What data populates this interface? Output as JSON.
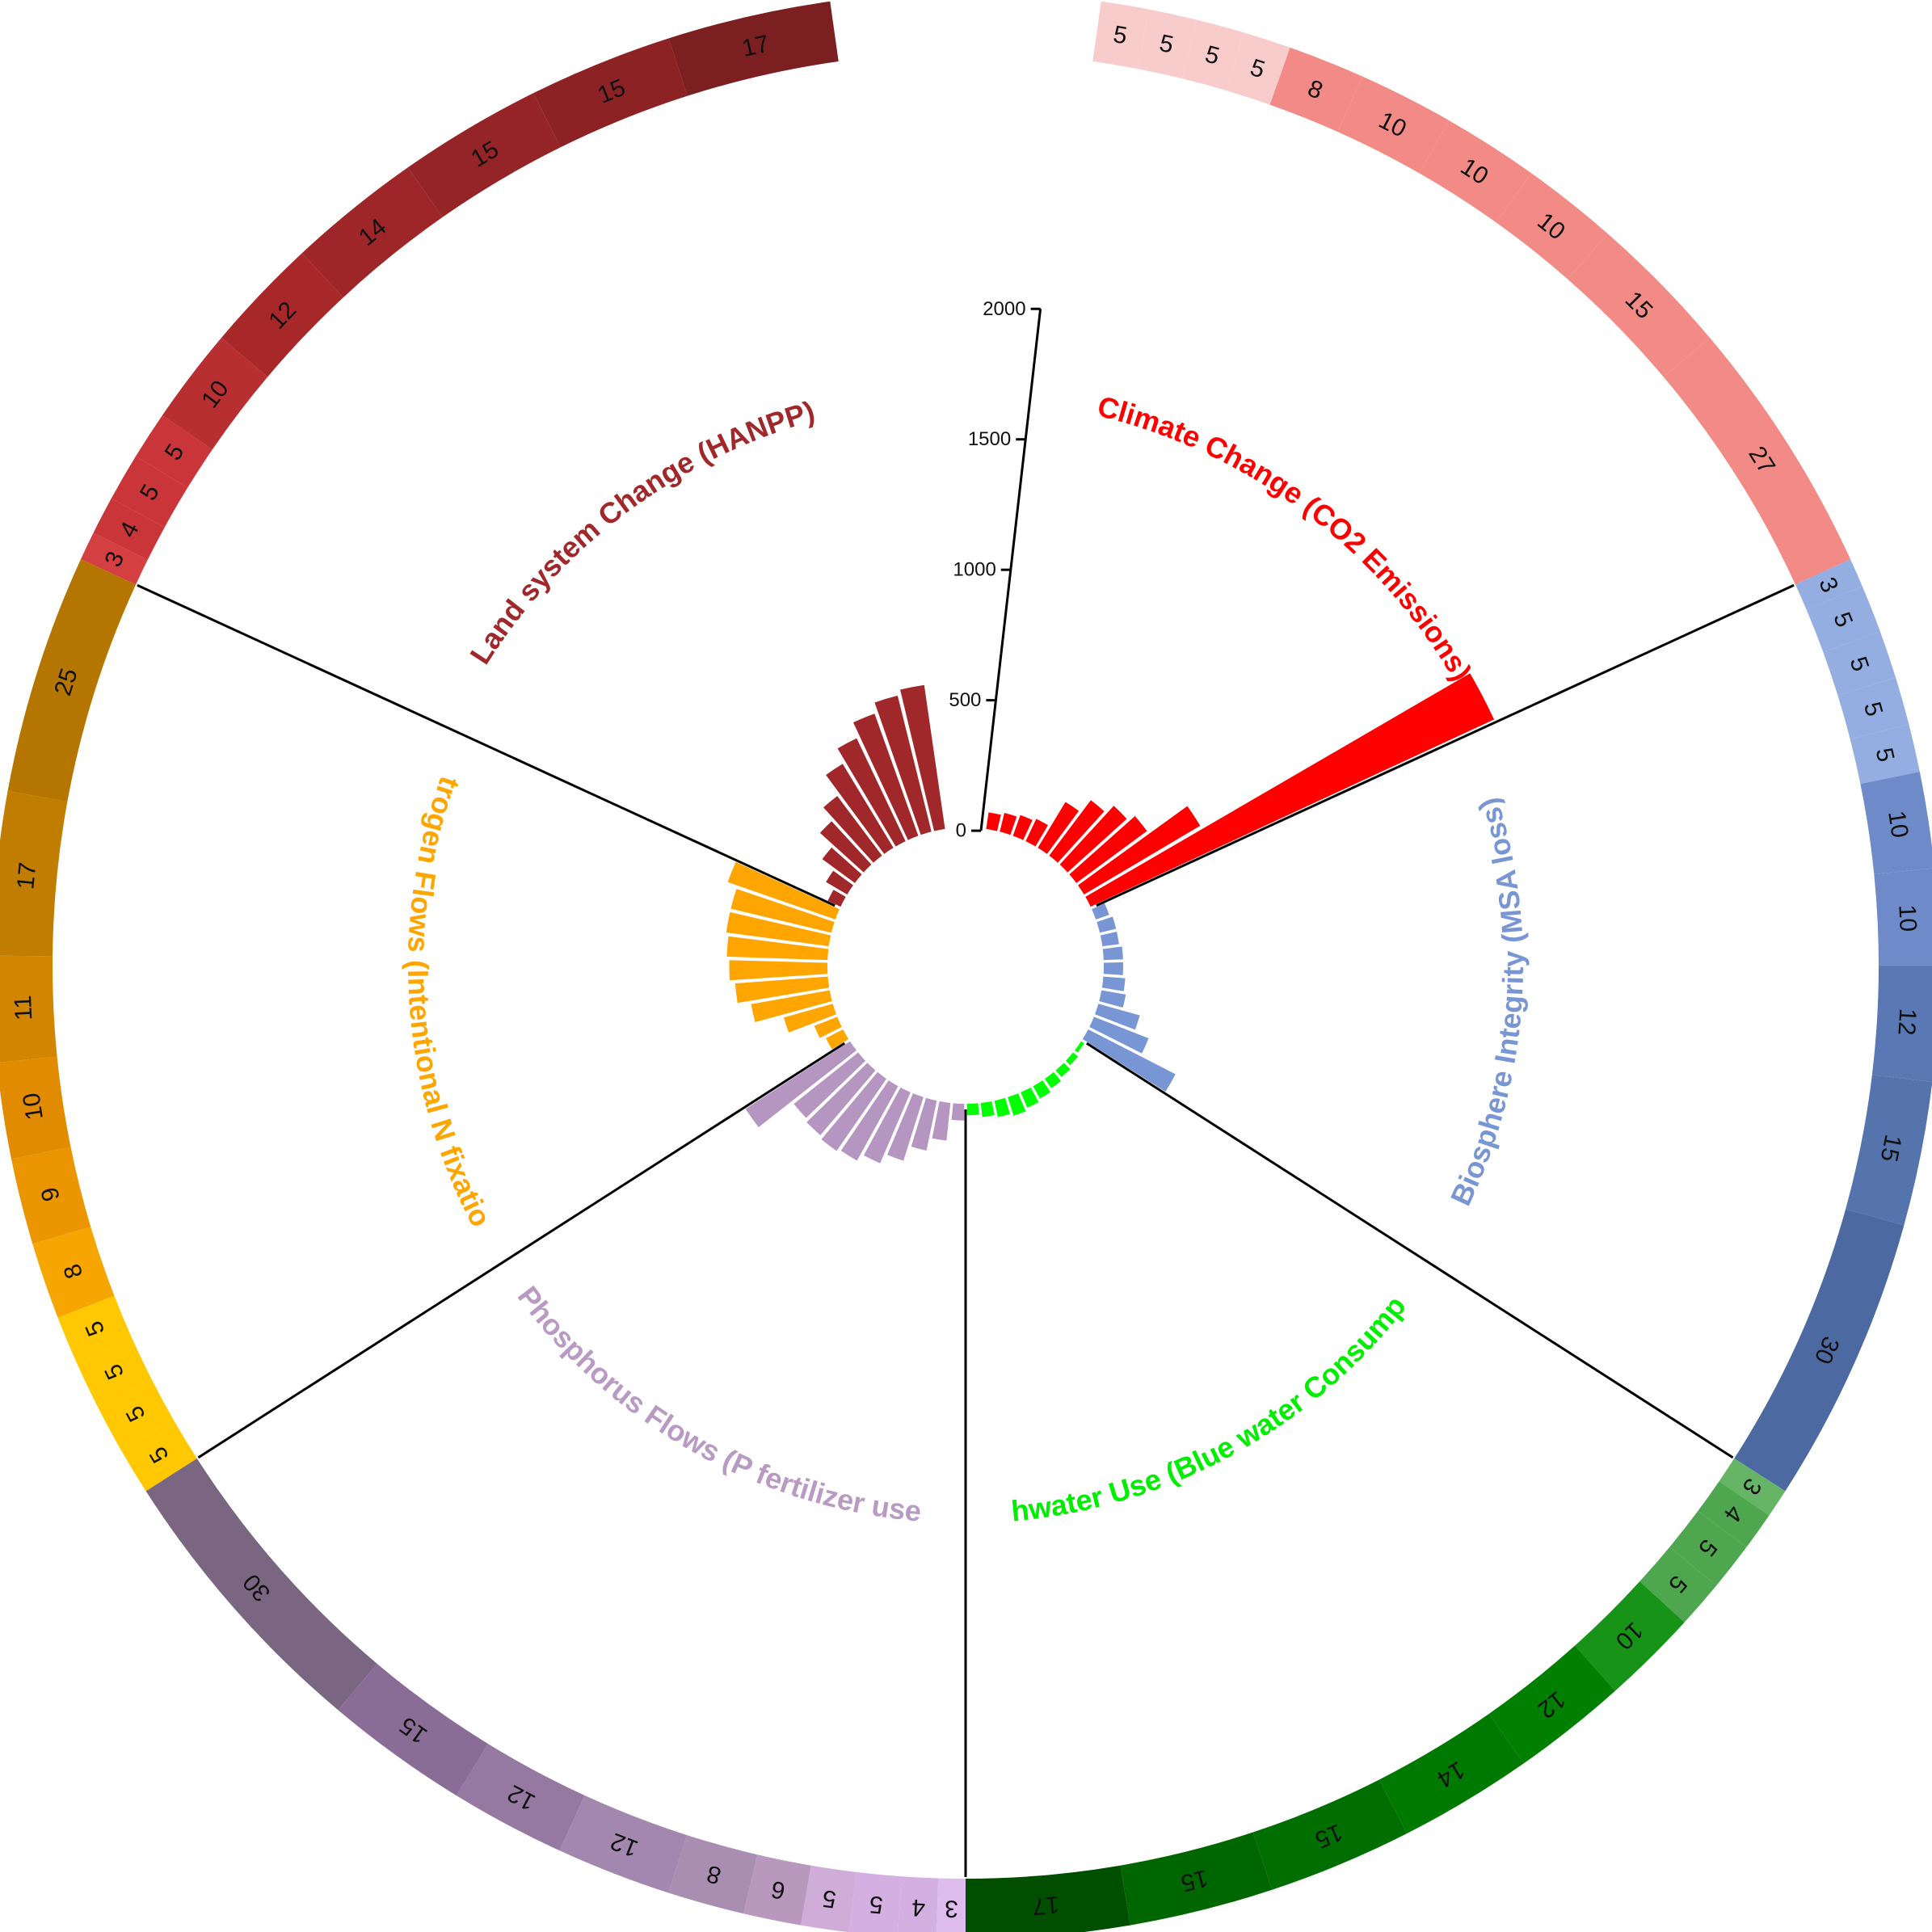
{
  "chart_data": {
    "type": "circular-bar",
    "radial_axis": {
      "ticks": [
        0,
        500,
        1000,
        1500,
        2000
      ],
      "range": [
        0,
        2000
      ]
    },
    "sectors": [
      {
        "title": "Climate Change (CO2 Emissions)",
        "title_color": "#ff0000",
        "bar_color": "#ff0000",
        "ring_colors": [
          "#f9cccc",
          "#f9cccc",
          "#f9cccc",
          "#f9cccc",
          "#f28a86",
          "#f28a86",
          "#f28a86",
          "#f28a86",
          "#f28a86",
          "#f28a86"
        ],
        "shares": [
          5,
          5,
          5,
          5,
          8,
          10,
          10,
          10,
          15,
          27
        ],
        "values": [
          70,
          80,
          90,
          100,
          210,
          270,
          310,
          340,
          520,
          1700
        ]
      },
      {
        "title": "Biosphere Integrity (MSA loss)",
        "title_color": "#7896d4",
        "bar_color": "#7896d4",
        "ring_colors": [
          "#94aee1",
          "#94aee1",
          "#94aee1",
          "#94aee1",
          "#94aee1",
          "#6e8ac8",
          "#6e8ac8",
          "#5978b4",
          "#5573ad",
          "#4c6aa1"
        ],
        "shares": [
          3,
          5,
          5,
          5,
          5,
          10,
          10,
          12,
          15,
          30
        ],
        "values": [
          60,
          70,
          70,
          80,
          80,
          90,
          100,
          170,
          230,
          380
        ]
      },
      {
        "title": "Freshwater Use (Blue water Consumption)",
        "title_color": "#00ee00",
        "bar_color": "#00ff00",
        "ring_colors": [
          "#66b566",
          "#4ea64e",
          "#4ea64e",
          "#4ea64e",
          "#179417",
          "#007f00",
          "#007900",
          "#006e00",
          "#006600",
          "#004e00"
        ],
        "shares": [
          3,
          4,
          5,
          5,
          10,
          12,
          14,
          15,
          15,
          17
        ],
        "values": [
          20,
          30,
          40,
          50,
          60,
          70,
          80,
          70,
          60,
          50
        ]
      },
      {
        "title": "Phosphorus Flows (P fertilizer use)",
        "title_color": "#b89ac2",
        "bar_color": "#b496c0",
        "ring_colors": [
          "#dfbcee",
          "#d3afe2",
          "#d3afe2",
          "#cfadd8",
          "#b898bd",
          "#a98eb2",
          "#a287ae",
          "#9679a1",
          "#8a6d96",
          "#7b6682"
        ],
        "shares": [
          3,
          4,
          5,
          5,
          6,
          8,
          12,
          12,
          15,
          30
        ],
        "values": [
          70,
          150,
          200,
          260,
          300,
          330,
          340,
          330,
          320,
          480
        ]
      },
      {
        "title": "Nitrogen Flows (Intentional N fixation)",
        "title_color": "#ffa500",
        "bar_color": "#ffa500",
        "ring_colors": [
          "#ffc800",
          "#ffc800",
          "#ffc800",
          "#ffc800",
          "#f7a500",
          "#eb9600",
          "#e18c00",
          "#d18500",
          "#c07d00",
          "#b57600"
        ],
        "shares": [
          5,
          5,
          5,
          5,
          8,
          9,
          10,
          11,
          17,
          25
        ],
        "values": [
          80,
          100,
          200,
          310,
          360,
          380,
          390,
          400,
          400,
          440
        ]
      },
      {
        "title": "Land system Change (HANPP)",
        "title_color": "#a1282a",
        "bar_color": "#a1282a",
        "ring_colors": [
          "#d43f42",
          "#c93538",
          "#c93538",
          "#c93538",
          "#b72f31",
          "#a8282a",
          "#9f2628",
          "#952427",
          "#8d2225",
          "#7b1f20"
        ],
        "shares": [
          3,
          4,
          5,
          5,
          10,
          12,
          14,
          15,
          15,
          17
        ],
        "values": [
          60,
          100,
          160,
          230,
          290,
          380,
          440,
          500,
          540,
          560
        ]
      }
    ]
  }
}
